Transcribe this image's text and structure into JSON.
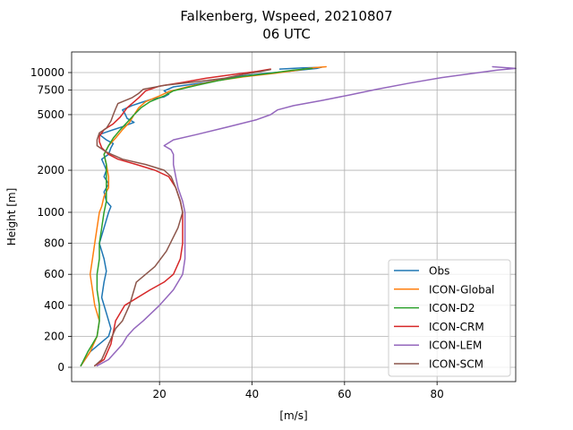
{
  "chart_data": {
    "type": "line",
    "title": "Falkenberg, Wspeed, 20210807",
    "subtitle": "06 UTC",
    "xlabel": "[m/s]",
    "ylabel": "Height [m]",
    "xlim": [
      1,
      97
    ],
    "x_ticks": [
      20,
      40,
      60,
      80
    ],
    "y_ticks": [
      {
        "value": 0,
        "label": "0"
      },
      {
        "value": 200,
        "label": "200"
      },
      {
        "value": 400,
        "label": "400"
      },
      {
        "value": 600,
        "label": "600"
      },
      {
        "value": 800,
        "label": "800"
      },
      {
        "value": 1000,
        "label": "1000"
      },
      {
        "value": 2000,
        "label": "2000"
      },
      {
        "value": 5000,
        "label": "5000"
      },
      {
        "value": 7500,
        "label": "7500"
      },
      {
        "value": 10000,
        "label": "10000"
      }
    ],
    "y_scale": "piecewise: linear 0-1000 m, logarithmic above 1000 m",
    "grid": true,
    "legend_position": "lower right",
    "series": [
      {
        "name": "Obs",
        "color": "#1f77b4",
        "points": [
          [
            3,
            10
          ],
          [
            5,
            100
          ],
          [
            7,
            150
          ],
          [
            9,
            200
          ],
          [
            9.5,
            250
          ],
          [
            8.5,
            350
          ],
          [
            7.5,
            450
          ],
          [
            8,
            550
          ],
          [
            8.5,
            620
          ],
          [
            8,
            700
          ],
          [
            7,
            800
          ],
          [
            8,
            900
          ],
          [
            9,
            1000
          ],
          [
            9.5,
            1100
          ],
          [
            8.5,
            1200
          ],
          [
            8,
            1400
          ],
          [
            9,
            1600
          ],
          [
            8,
            1800
          ],
          [
            8.5,
            2000
          ],
          [
            8,
            2200
          ],
          [
            7.5,
            2400
          ],
          [
            9,
            2600
          ],
          [
            9.5,
            2900
          ],
          [
            10,
            3100
          ],
          [
            8.5,
            3300
          ],
          [
            7,
            3600
          ],
          [
            9,
            3800
          ],
          [
            12,
            4100
          ],
          [
            14.5,
            4400
          ],
          [
            13,
            4700
          ],
          [
            12.5,
            5100
          ],
          [
            12,
            5400
          ],
          [
            14,
            5800
          ],
          [
            16,
            6100
          ],
          [
            18,
            6400
          ],
          [
            21,
            6700
          ],
          [
            22,
            7000
          ],
          [
            21,
            7400
          ],
          [
            23,
            7900
          ],
          [
            30,
            8500
          ],
          [
            36,
            9300
          ],
          [
            42,
            9800
          ],
          [
            49,
            10300
          ],
          [
            54,
            10700
          ],
          [
            55,
            10900
          ],
          [
            51,
            10800
          ],
          [
            46,
            10600
          ]
        ]
      },
      {
        "name": "ICON-Global",
        "color": "#ff7f0e",
        "points": [
          [
            3,
            10
          ],
          [
            5,
            100
          ],
          [
            6.5,
            200
          ],
          [
            7,
            300
          ],
          [
            6,
            400
          ],
          [
            5.5,
            500
          ],
          [
            5,
            600
          ],
          [
            5.5,
            700
          ],
          [
            6,
            800
          ],
          [
            6.5,
            900
          ],
          [
            7,
            1000
          ],
          [
            7.5,
            1100
          ],
          [
            8,
            1300
          ],
          [
            9,
            1500
          ],
          [
            9,
            1800
          ],
          [
            8.5,
            2200
          ],
          [
            8,
            2600
          ],
          [
            9,
            3000
          ],
          [
            10.5,
            3400
          ],
          [
            12,
            3900
          ],
          [
            13.5,
            4400
          ],
          [
            14.5,
            5000
          ],
          [
            15.5,
            5600
          ],
          [
            17,
            6200
          ],
          [
            20,
            6800
          ],
          [
            22,
            7300
          ],
          [
            26,
            7900
          ],
          [
            32,
            8700
          ],
          [
            38,
            9300
          ],
          [
            45,
            9900
          ],
          [
            50,
            10400
          ],
          [
            53,
            10800
          ],
          [
            56,
            11000
          ]
        ]
      },
      {
        "name": "ICON-D2",
        "color": "#2ca02c",
        "points": [
          [
            3,
            10
          ],
          [
            4.5,
            100
          ],
          [
            5.5,
            150
          ],
          [
            6.5,
            200
          ],
          [
            7,
            300
          ],
          [
            7,
            400
          ],
          [
            6.5,
            500
          ],
          [
            6.5,
            600
          ],
          [
            7,
            700
          ],
          [
            7,
            800
          ],
          [
            7.5,
            900
          ],
          [
            8,
            1000
          ],
          [
            8.5,
            1200
          ],
          [
            8.5,
            1500
          ],
          [
            8.5,
            1800
          ],
          [
            8.5,
            2200
          ],
          [
            8,
            2600
          ],
          [
            9,
            3000
          ],
          [
            10,
            3400
          ],
          [
            11.5,
            3900
          ],
          [
            13,
            4400
          ],
          [
            14.5,
            5000
          ],
          [
            16,
            5600
          ],
          [
            18,
            6200
          ],
          [
            21,
            6800
          ],
          [
            23,
            7400
          ],
          [
            28,
            8100
          ],
          [
            33,
            8800
          ],
          [
            38,
            9400
          ],
          [
            44,
            9900
          ],
          [
            49,
            10400
          ],
          [
            53,
            10700
          ]
        ]
      },
      {
        "name": "ICON-CRM",
        "color": "#d62728",
        "points": [
          [
            6,
            10
          ],
          [
            8,
            50
          ],
          [
            9.5,
            150
          ],
          [
            10.5,
            300
          ],
          [
            12.5,
            400
          ],
          [
            18,
            500
          ],
          [
            21,
            550
          ],
          [
            23,
            600
          ],
          [
            24.5,
            700
          ],
          [
            25,
            800
          ],
          [
            25,
            900
          ],
          [
            25,
            1000
          ],
          [
            24.5,
            1200
          ],
          [
            23.5,
            1500
          ],
          [
            22,
            1800
          ],
          [
            19,
            2000
          ],
          [
            15,
            2200
          ],
          [
            11,
            2400
          ],
          [
            9,
            2600
          ],
          [
            7.5,
            2900
          ],
          [
            7,
            3200
          ],
          [
            7,
            3500
          ],
          [
            8,
            3900
          ],
          [
            10,
            4300
          ],
          [
            11.5,
            4800
          ],
          [
            13,
            5600
          ],
          [
            15.5,
            6600
          ],
          [
            17,
            7400
          ],
          [
            20,
            8000
          ],
          [
            25,
            8500
          ],
          [
            30,
            9100
          ],
          [
            36,
            9700
          ],
          [
            41,
            10200
          ],
          [
            44,
            10600
          ]
        ]
      },
      {
        "name": "ICON-LEM",
        "color": "#9467bd",
        "points": [
          [
            6.5,
            10
          ],
          [
            9,
            50
          ],
          [
            10.5,
            100
          ],
          [
            12,
            150
          ],
          [
            13,
            200
          ],
          [
            14.5,
            250
          ],
          [
            16.5,
            300
          ],
          [
            20,
            400
          ],
          [
            23,
            500
          ],
          [
            25,
            600
          ],
          [
            25.5,
            700
          ],
          [
            25.5,
            800
          ],
          [
            25.5,
            900
          ],
          [
            25.5,
            1000
          ],
          [
            25,
            1200
          ],
          [
            24,
            1500
          ],
          [
            23.5,
            1800
          ],
          [
            23,
            2200
          ],
          [
            23,
            2600
          ],
          [
            22.5,
            2800
          ],
          [
            21,
            3000
          ],
          [
            23,
            3300
          ],
          [
            28,
            3600
          ],
          [
            35,
            4100
          ],
          [
            41,
            4600
          ],
          [
            44,
            5000
          ],
          [
            45.5,
            5400
          ],
          [
            49,
            5800
          ],
          [
            55,
            6300
          ],
          [
            61,
            6900
          ],
          [
            67,
            7600
          ],
          [
            74,
            8400
          ],
          [
            81,
            9200
          ],
          [
            88,
            9900
          ],
          [
            93,
            10400
          ],
          [
            97,
            10700
          ],
          [
            92,
            11000
          ]
        ]
      },
      {
        "name": "ICON-SCM",
        "color": "#8c564b",
        "points": [
          [
            6,
            10
          ],
          [
            7.5,
            50
          ],
          [
            9,
            150
          ],
          [
            10.5,
            250
          ],
          [
            12,
            300
          ],
          [
            13.5,
            400
          ],
          [
            14,
            450
          ],
          [
            15,
            550
          ],
          [
            19,
            650
          ],
          [
            21.5,
            750
          ],
          [
            24,
            900
          ],
          [
            25,
            1000
          ],
          [
            24.5,
            1200
          ],
          [
            23.5,
            1500
          ],
          [
            22.5,
            1800
          ],
          [
            21,
            2000
          ],
          [
            17,
            2200
          ],
          [
            12,
            2400
          ],
          [
            8.5,
            2700
          ],
          [
            6.5,
            3000
          ],
          [
            6.5,
            3300
          ],
          [
            7,
            3700
          ],
          [
            8.5,
            4000
          ],
          [
            9.5,
            4500
          ],
          [
            10,
            5000
          ],
          [
            10.5,
            5500
          ],
          [
            11,
            6000
          ],
          [
            14,
            6600
          ],
          [
            15.5,
            7100
          ],
          [
            16.5,
            7600
          ],
          [
            21,
            8100
          ],
          [
            28,
            8600
          ],
          [
            34,
            9100
          ],
          [
            38,
            9700
          ],
          [
            42,
            10200
          ],
          [
            44,
            10500
          ]
        ]
      }
    ]
  }
}
